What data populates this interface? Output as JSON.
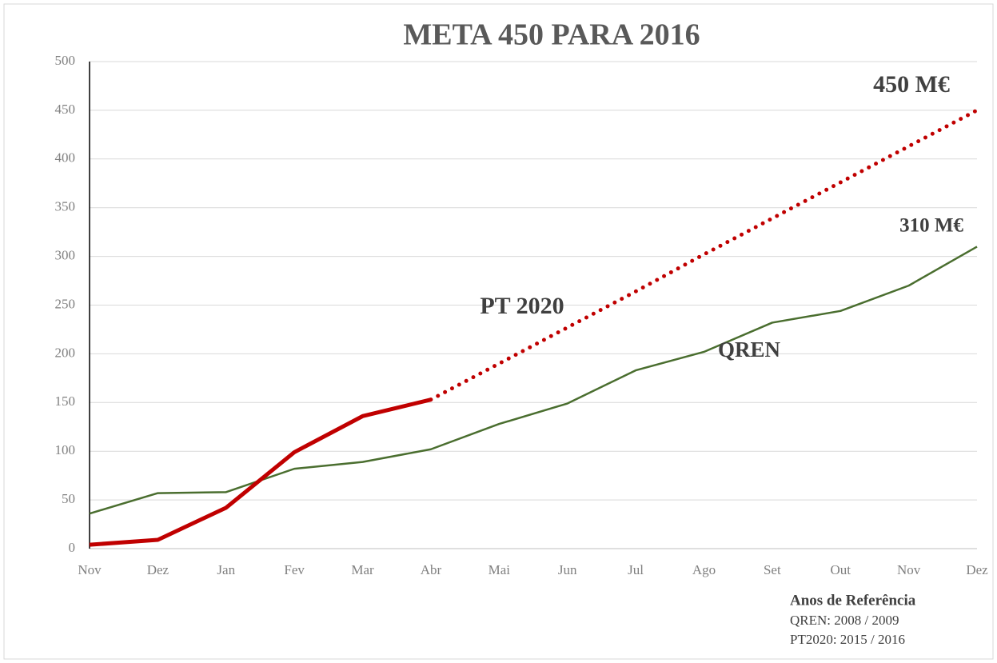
{
  "chart_data": {
    "type": "line",
    "title": "META 450 PARA 2016",
    "categories": [
      "Nov",
      "Dez",
      "Jan",
      "Fev",
      "Mar",
      "Abr",
      "Mai",
      "Jun",
      "Jul",
      "Ago",
      "Set",
      "Out",
      "Nov",
      "Dez"
    ],
    "series": [
      {
        "name": "QREN",
        "color": "#4a6e2f",
        "width": 2.5,
        "dash": "solid",
        "values": [
          36,
          57,
          58,
          82,
          89,
          102,
          128,
          149,
          183,
          202,
          232,
          244,
          270,
          310
        ]
      },
      {
        "name": "PT 2020",
        "color": "#c00000",
        "width": 5,
        "dash": "solid",
        "values": [
          4,
          9,
          42,
          99,
          136,
          153,
          null,
          null,
          null,
          null,
          null,
          null,
          null,
          null
        ]
      },
      {
        "color": "#c00000",
        "width": 5,
        "dash": "dotted",
        "values": [
          null,
          null,
          null,
          null,
          null,
          153,
          190,
          227,
          264,
          302,
          339,
          376,
          413,
          450
        ]
      }
    ],
    "ylim": [
      0,
      500
    ],
    "yticks": [
      0,
      50,
      100,
      150,
      200,
      250,
      300,
      350,
      400,
      450,
      500
    ],
    "grid": true,
    "annotations": [
      "450 M€",
      "310 M€"
    ],
    "footnote": {
      "title": "Anos de Referência",
      "lines": [
        "QREN: 2008 / 2009",
        "PT2020: 2015 / 2016"
      ]
    }
  }
}
